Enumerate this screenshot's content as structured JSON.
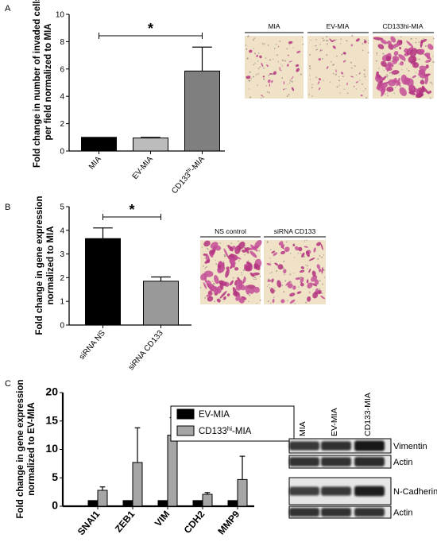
{
  "figure": {
    "panels": [
      {
        "letter": "A",
        "ylabel_line1": "Fold change in number of invaded cells",
        "ylabel_line2": "per field normalized to MIA",
        "significance": "*",
        "micrographs": [
          {
            "label": "MIA",
            "density": "sparse"
          },
          {
            "label": "EV-MIA",
            "density": "sparse"
          },
          {
            "label": "CD133hi-MIA",
            "density": "dense"
          }
        ]
      },
      {
        "letter": "B",
        "ylabel_line1": "Fold change in gene expression",
        "ylabel_line2": "normalized to MIA",
        "significance": "*",
        "micrographs": [
          {
            "label": "NS control",
            "density": "dense"
          },
          {
            "label": "siRNA CD133",
            "density": "medium"
          }
        ]
      },
      {
        "letter": "C",
        "ylabel_line1": "Fold change in gene expression",
        "ylabel_line2": "normalized to EV-MIA",
        "blot": {
          "lanes": [
            "MIA",
            "EV-MIA",
            "CD133-MIA"
          ],
          "bands": [
            {
              "label": "Vimentin",
              "intensity": [
                0.75,
                0.8,
                1.0
              ]
            },
            {
              "label": "Actin",
              "intensity": [
                0.8,
                0.8,
                0.85
              ]
            },
            {
              "label": "N-Cadherin",
              "intensity": [
                0.7,
                0.75,
                0.95
              ]
            },
            {
              "label": "Actin",
              "intensity": [
                0.8,
                0.8,
                0.8
              ]
            }
          ]
        }
      }
    ]
  },
  "chart_data": [
    {
      "type": "bar",
      "categories": [
        "MIA",
        "EV-MIA",
        "CD133hi-MIA"
      ],
      "category_display": [
        {
          "base": "MIA",
          "sup": "",
          "tail": ""
        },
        {
          "base": "EV-MIA",
          "sup": "",
          "tail": ""
        },
        {
          "base": "CD133",
          "sup": "hi",
          "tail": "-MIA"
        }
      ],
      "values": [
        1.0,
        0.95,
        5.85
      ],
      "errors": [
        0.0,
        0.05,
        1.75
      ],
      "colors": [
        "#000000",
        "#bcbcbc",
        "#7f7f7f"
      ],
      "ylabel": "Fold change in number of invaded cells per field normalized to MIA",
      "ylim": [
        0,
        10
      ],
      "yticks": [
        0,
        2,
        4,
        6,
        8,
        10
      ],
      "significance": {
        "from": 0,
        "to": 2,
        "label": "*"
      }
    },
    {
      "type": "bar",
      "categories": [
        "siRNA NS",
        "siRNA CD133"
      ],
      "values": [
        3.65,
        1.85
      ],
      "errors": [
        0.45,
        0.18
      ],
      "colors": [
        "#000000",
        "#999999"
      ],
      "ylabel": "Fold change in gene expression normalized to MIA",
      "ylim": [
        0,
        5
      ],
      "yticks": [
        0,
        1,
        2,
        3,
        4,
        5
      ],
      "significance": {
        "from": 0,
        "to": 1,
        "label": "*"
      }
    },
    {
      "type": "bar",
      "categories": [
        "SNAI1",
        "ZEB1",
        "VIM",
        "CDH2",
        "MMP9"
      ],
      "series": [
        {
          "name": "EV-MIA",
          "values": [
            1,
            1,
            1,
            1,
            1
          ],
          "errors": [
            0,
            0,
            0,
            0,
            0
          ],
          "color": "#000000"
        },
        {
          "name": "CD133hi-MIA",
          "name_display": {
            "base": "CD133",
            "sup": "hi",
            "tail": "-MIA"
          },
          "values": [
            2.8,
            7.7,
            12.5,
            2.1,
            4.7
          ],
          "errors": [
            0.6,
            6.1,
            3.1,
            0.3,
            4.1
          ],
          "color": "#a6a6a6"
        }
      ],
      "ylabel": "Fold change in gene expression normalized to EV-MIA",
      "ylim": [
        0,
        20
      ],
      "yticks": [
        0,
        5,
        10,
        15,
        20
      ],
      "legend": "top-right"
    }
  ]
}
